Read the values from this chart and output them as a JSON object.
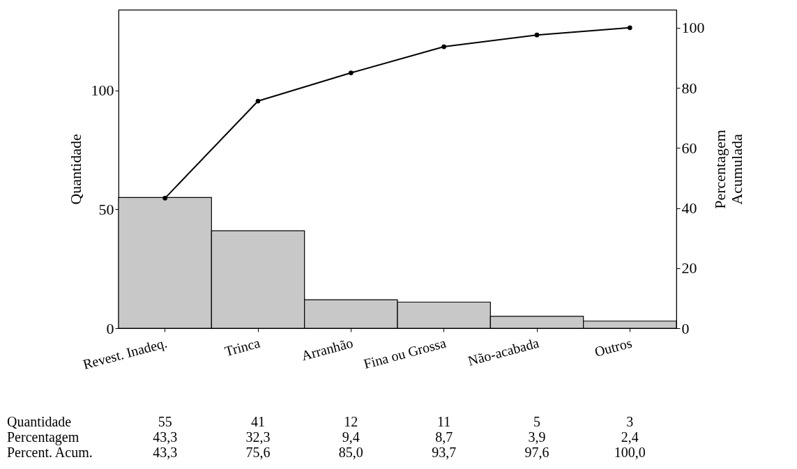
{
  "chart_data": {
    "type": "bar",
    "categories": [
      "Revest. Inadeq.",
      "Trinca",
      "Arranhão",
      "Fina ou Grossa",
      "Não-acabada",
      "Outros"
    ],
    "series": [
      {
        "color": "#c8c8c8",
        "values": [
          55,
          41,
          12,
          11,
          5,
          3
        ],
        "value_labels": [
          "55",
          "41",
          "12",
          "11",
          "5",
          "3"
        ]
      },
      {
        "type": "line",
        "axis": "y2",
        "color": "#000000",
        "values": [
          43.3,
          75.6,
          85.0,
          93.7,
          97.6,
          100.0
        ],
        "value_labels": [
          "43,3",
          "75,6",
          "85,0",
          "93,7",
          "97,6",
          "100,0"
        ]
      }
    ],
    "annotations": [
      "Quantidade",
      "Percentagem",
      "Percent. Acum.",
      "43,3",
      "32,3",
      "9,4",
      "8,7",
      "3,9",
      "2,4"
    ],
    "ylabel": "Quantidade",
    "y2label": "Percentagem Acumulada",
    "ylim": [
      0,
      134
    ],
    "yticks": [
      0,
      50,
      100
    ],
    "y2lim": [
      0,
      106
    ],
    "y2ticks": [
      0,
      20,
      40,
      60,
      80,
      100
    ],
    "marker": "circle",
    "line_style": "solid",
    "grid": false,
    "data_labels": true
  }
}
